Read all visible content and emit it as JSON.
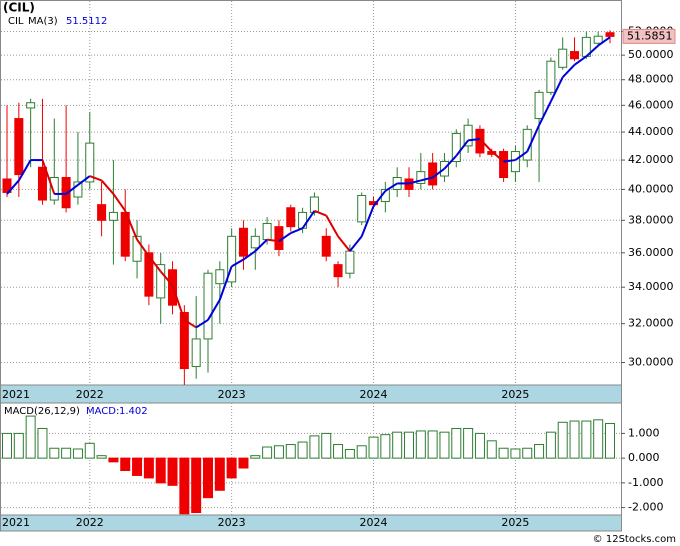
{
  "chart_data": [
    {
      "type": "candlestick",
      "title": "(CIL)",
      "name": "CIL",
      "log": true,
      "grid": true,
      "up_color": "#2e7d32",
      "down_color": "#ee0000",
      "categories": [
        "2021",
        null,
        null,
        null,
        null,
        null,
        null,
        "2022",
        null,
        null,
        null,
        null,
        null,
        null,
        null,
        null,
        null,
        null,
        null,
        "2023",
        null,
        null,
        null,
        null,
        null,
        null,
        null,
        null,
        null,
        null,
        null,
        "2024",
        null,
        null,
        null,
        null,
        null,
        null,
        null,
        null,
        null,
        null,
        null,
        "2025",
        null,
        null,
        null,
        null,
        null,
        null,
        null,
        null
      ],
      "open": [
        40.7,
        45,
        45.8,
        41.5,
        39.3,
        40.8,
        39.5,
        40.5,
        39,
        38,
        38.5,
        35.5,
        36,
        33.4,
        35,
        32.6,
        29.8,
        31.2,
        34.2,
        34.3,
        37.5,
        36.3,
        36.8,
        37.6,
        38.8,
        37.5,
        38.5,
        37,
        35.3,
        34.8,
        37.9,
        39.2,
        39.2,
        40,
        40.7,
        40.4,
        41.8,
        40.9,
        41.9,
        43,
        44.2,
        42.6,
        42.6,
        41.2,
        42,
        45,
        47,
        49,
        50.3,
        49.9,
        51,
        51.9
      ],
      "high": [
        46,
        46.2,
        46.5,
        46.5,
        45,
        46,
        44,
        45.5,
        40.5,
        42,
        40,
        38,
        36.5,
        36,
        35.5,
        33,
        33.5,
        35,
        35.5,
        37.5,
        38,
        37.5,
        38.2,
        38,
        39,
        38.8,
        39.8,
        37.5,
        35.5,
        36.5,
        39.8,
        39.5,
        40.5,
        41.5,
        41.5,
        42.5,
        42.5,
        42.5,
        44.2,
        45,
        44.5,
        42.8,
        42.8,
        43,
        44.5,
        47.2,
        49.8,
        51.5,
        51.5,
        52,
        52,
        52.1
      ],
      "low": [
        39.5,
        39.5,
        41.5,
        39,
        39,
        38.5,
        39,
        40,
        37,
        35.3,
        35.5,
        34.5,
        33,
        32,
        32.5,
        28.9,
        29.2,
        29.5,
        32,
        34,
        35,
        35,
        36.5,
        35.8,
        37.3,
        37.2,
        38.3,
        35.5,
        34,
        34.5,
        37.7,
        38.8,
        38.5,
        39.5,
        39.5,
        40,
        40,
        40.5,
        41.5,
        42.5,
        42.2,
        42.2,
        40.5,
        40.5,
        41.5,
        40.5,
        46.8,
        48.8,
        49.5,
        49.7,
        50.8,
        51
      ],
      "close": [
        39.8,
        41,
        46.2,
        39.3,
        40.8,
        38.8,
        40.5,
        43.2,
        38,
        38.5,
        35.8,
        37,
        33.5,
        35.3,
        33,
        29.7,
        31.2,
        34.8,
        35,
        37,
        35.8,
        37,
        37.8,
        36.2,
        37.6,
        38.5,
        39.5,
        35.8,
        34.6,
        36.1,
        39.6,
        39,
        40,
        40.8,
        40,
        41.2,
        40.3,
        41.9,
        43.9,
        44.5,
        42.5,
        42.4,
        40.8,
        42.6,
        44.2,
        47,
        49.5,
        50.5,
        49.7,
        51.5,
        51.6,
        51.5851
      ],
      "ma": {
        "name": "MA(3)",
        "rise_color": "#0000dd",
        "fall_color": "#dd0000",
        "values": [
          39.7,
          40.6,
          42,
          42,
          39.7,
          39.7,
          40.3,
          40.9,
          40.6,
          39.7,
          38.6,
          36.8,
          35.8,
          34.9,
          34.1,
          32.2,
          31.8,
          32.2,
          33.3,
          35.2,
          35.6,
          36.1,
          36.8,
          36.7,
          37.2,
          37.5,
          38.6,
          38.3,
          37,
          36.1,
          37,
          38.9,
          39.9,
          40.4,
          40.4,
          40.6,
          40.8,
          41.4,
          42.3,
          43.4,
          43.5,
          42.6,
          41.9,
          42,
          42.6,
          44.5,
          46.3,
          48.2,
          49.2,
          49.9,
          50.8,
          51.5112
        ]
      },
      "ylim": [
        28.9,
        54.8
      ],
      "yticks": [
        {
          "value": 30,
          "label": "30.0000"
        },
        {
          "value": 32,
          "label": "32.0000"
        },
        {
          "value": 34,
          "label": "34.0000"
        },
        {
          "value": 36,
          "label": "36.0000"
        },
        {
          "value": 38,
          "label": "38.0000"
        },
        {
          "value": 40,
          "label": "40.0000"
        },
        {
          "value": 42,
          "label": "42.0000"
        },
        {
          "value": 44,
          "label": "44.0000"
        },
        {
          "value": 46,
          "label": "46.0000"
        },
        {
          "value": 48,
          "label": "48.0000"
        },
        {
          "value": 50,
          "label": "50.0000"
        },
        {
          "value": 52,
          "label": "52.0000"
        }
      ]
    },
    {
      "type": "bar",
      "name": "MACD(26,12,9)",
      "value_name": "MACD:",
      "up_color": "#2e7d32",
      "down_color": "#ee0000",
      "values": [
        1.0,
        1.0,
        1.7,
        1.2,
        0.4,
        0.4,
        0.37,
        0.6,
        0.1,
        -0.15,
        -0.5,
        -0.7,
        -0.8,
        -1.0,
        -1.1,
        -2.25,
        -2.2,
        -1.6,
        -1.3,
        -0.8,
        -0.4,
        0.1,
        0.45,
        0.5,
        0.55,
        0.65,
        0.9,
        1.0,
        0.55,
        0.35,
        0.5,
        0.85,
        0.95,
        1.05,
        1.05,
        1.1,
        1.1,
        1.05,
        1.2,
        1.2,
        1.0,
        0.7,
        0.4,
        0.37,
        0.4,
        0.55,
        1.05,
        1.45,
        1.5,
        1.5,
        1.55,
        1.402
      ],
      "ylim": [
        -2.3,
        2.23
      ],
      "yticks": [
        {
          "value": 1,
          "label": "1.000"
        },
        {
          "value": 0,
          "label": "0.000"
        },
        {
          "value": -1,
          "label": "-1.000"
        },
        {
          "value": -2,
          "label": "-2.000"
        }
      ]
    }
  ],
  "watermark": "© 12Stocks.com"
}
